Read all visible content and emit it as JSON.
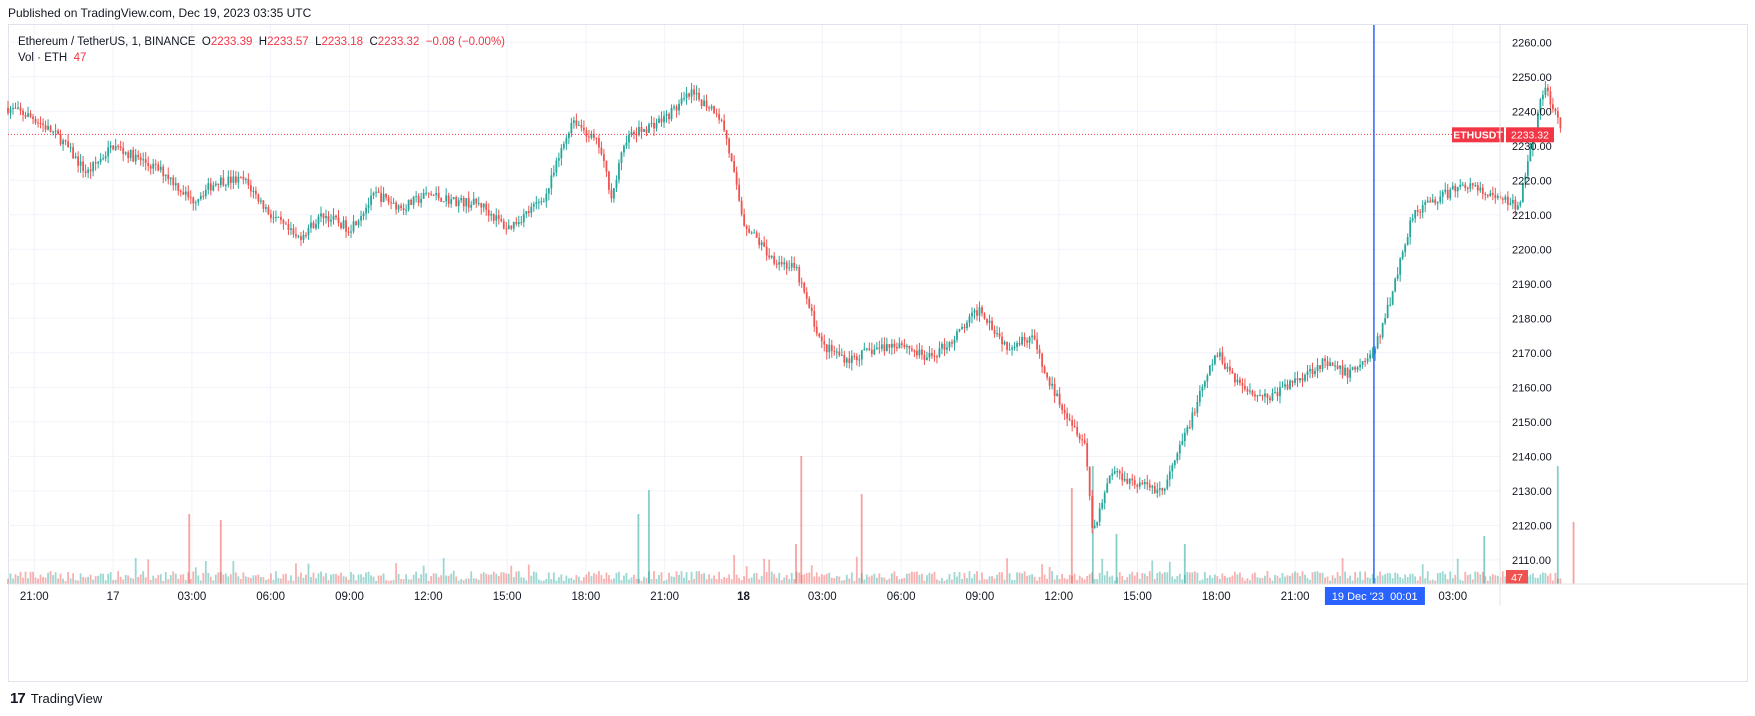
{
  "header": {
    "published": "Published on TradingView.com, Dec 19, 2023 03:35 UTC"
  },
  "legend": {
    "symbol": "Ethereum / TetherUS, 1, BINANCE",
    "o_label": "O",
    "o_value": "2233.39",
    "h_label": "H",
    "h_value": "2233.57",
    "l_label": "L",
    "l_value": "2233.18",
    "c_label": "C",
    "c_value": "2233.32",
    "change": "−0.08 (−0.00%)",
    "vol_label": "Vol · ETH",
    "vol_value": "47"
  },
  "footer": {
    "brand": "TradingView",
    "logo": "17"
  },
  "colors": {
    "up": "#26a69a",
    "down": "#ef5350",
    "crosshair": "#2962ff",
    "grid": "#f0f3fa",
    "price_line": "#f23645"
  },
  "chart_data": {
    "type": "candlestick",
    "symbol": "ETHUSDT",
    "interval": "1",
    "ylim": [
      2103,
      2265
    ],
    "yticks": [
      "2260.00",
      "2250.00",
      "2240.00",
      "2230.00",
      "2220.00",
      "2210.00",
      "2200.00",
      "2190.00",
      "2180.00",
      "2170.00",
      "2160.00",
      "2150.00",
      "2140.00",
      "2130.00",
      "2120.00",
      "2110.00"
    ],
    "xticks": [
      {
        "label": "21:00",
        "hours": 0
      },
      {
        "label": "17",
        "hours": 3,
        "bold": false
      },
      {
        "label": "03:00",
        "hours": 6
      },
      {
        "label": "06:00",
        "hours": 9
      },
      {
        "label": "09:00",
        "hours": 12
      },
      {
        "label": "12:00",
        "hours": 15
      },
      {
        "label": "15:00",
        "hours": 18
      },
      {
        "label": "18:00",
        "hours": 21
      },
      {
        "label": "21:00",
        "hours": 24
      },
      {
        "label": "18",
        "hours": 27,
        "bold": true
      },
      {
        "label": "03:00",
        "hours": 30
      },
      {
        "label": "06:00",
        "hours": 33
      },
      {
        "label": "09:00",
        "hours": 36
      },
      {
        "label": "12:00",
        "hours": 39
      },
      {
        "label": "15:00",
        "hours": 42
      },
      {
        "label": "18:00",
        "hours": 45
      },
      {
        "label": "21:00",
        "hours": 48
      },
      {
        "label": "03:00",
        "hours": 54
      }
    ],
    "x_range_hours": [
      -1,
      55.8
    ],
    "price_path": [
      [
        -1,
        2241
      ],
      [
        0,
        2238
      ],
      [
        1,
        2232
      ],
      [
        2,
        2222
      ],
      [
        3,
        2230
      ],
      [
        4,
        2226
      ],
      [
        5,
        2222
      ],
      [
        6,
        2214
      ],
      [
        7,
        2220
      ],
      [
        8,
        2220
      ],
      [
        9,
        2210
      ],
      [
        10,
        2203
      ],
      [
        11,
        2210
      ],
      [
        12,
        2206
      ],
      [
        13,
        2216
      ],
      [
        14,
        2212
      ],
      [
        15,
        2216
      ],
      [
        16,
        2214
      ],
      [
        17,
        2213
      ],
      [
        18,
        2206
      ],
      [
        19,
        2212
      ],
      [
        19.5,
        2216
      ],
      [
        20.5,
        2238
      ],
      [
        21.5,
        2230
      ],
      [
        22,
        2215
      ],
      [
        22.5,
        2232
      ],
      [
        24,
        2238
      ],
      [
        25,
        2245
      ],
      [
        26,
        2240
      ],
      [
        26.3,
        2234
      ],
      [
        27,
        2208
      ],
      [
        28,
        2198
      ],
      [
        29,
        2194
      ],
      [
        30,
        2172
      ],
      [
        31,
        2168
      ],
      [
        32,
        2171
      ],
      [
        33,
        2173
      ],
      [
        34,
        2168
      ],
      [
        35,
        2174
      ],
      [
        36,
        2183
      ],
      [
        37,
        2172
      ],
      [
        38,
        2175
      ],
      [
        38.5,
        2163
      ],
      [
        39.5,
        2150
      ],
      [
        40,
        2144
      ],
      [
        40.3,
        2118
      ],
      [
        41,
        2136
      ],
      [
        42,
        2132
      ],
      [
        43,
        2130
      ],
      [
        44,
        2150
      ],
      [
        45,
        2170
      ],
      [
        46,
        2160
      ],
      [
        47,
        2157
      ],
      [
        48,
        2162
      ],
      [
        49,
        2167
      ],
      [
        50,
        2164
      ],
      [
        51,
        2170
      ],
      [
        51.5,
        2182
      ],
      [
        52.5,
        2211
      ],
      [
        53.5,
        2215
      ],
      [
        54.5,
        2219
      ],
      [
        55.5,
        2215
      ],
      [
        56,
        2214
      ],
      [
        56.5,
        2212
      ],
      [
        57,
        2232
      ],
      [
        57.5,
        2247
      ],
      [
        58.1,
        2235
      ]
    ],
    "last_price": 2233.32,
    "last_price_label": "ETHUSDT",
    "last_price_text": "2233.32",
    "volume_last": "47",
    "crosshair": {
      "date_label": "19 Dec '23",
      "time_label": "00:01",
      "hours": 51
    },
    "volume_spikes": [
      {
        "hours": 5.9,
        "v": 70,
        "up": false
      },
      {
        "hours": 7.1,
        "v": 64,
        "up": false
      },
      {
        "hours": 23.4,
        "v": 94,
        "up": true
      },
      {
        "hours": 23.0,
        "v": 70,
        "up": true
      },
      {
        "hours": 29.2,
        "v": 128,
        "up": false
      },
      {
        "hours": 29.0,
        "v": 40,
        "up": false
      },
      {
        "hours": 31.5,
        "v": 90,
        "up": false
      },
      {
        "hours": 39.5,
        "v": 96,
        "up": false
      },
      {
        "hours": 40.3,
        "v": 118,
        "up": true
      },
      {
        "hours": 41.2,
        "v": 50,
        "up": true
      },
      {
        "hours": 43.8,
        "v": 40,
        "up": true
      },
      {
        "hours": 58.0,
        "v": 118,
        "up": true
      },
      {
        "hours": 58.6,
        "v": 62,
        "up": false
      },
      {
        "hours": 55.2,
        "v": 48,
        "up": true
      }
    ]
  }
}
